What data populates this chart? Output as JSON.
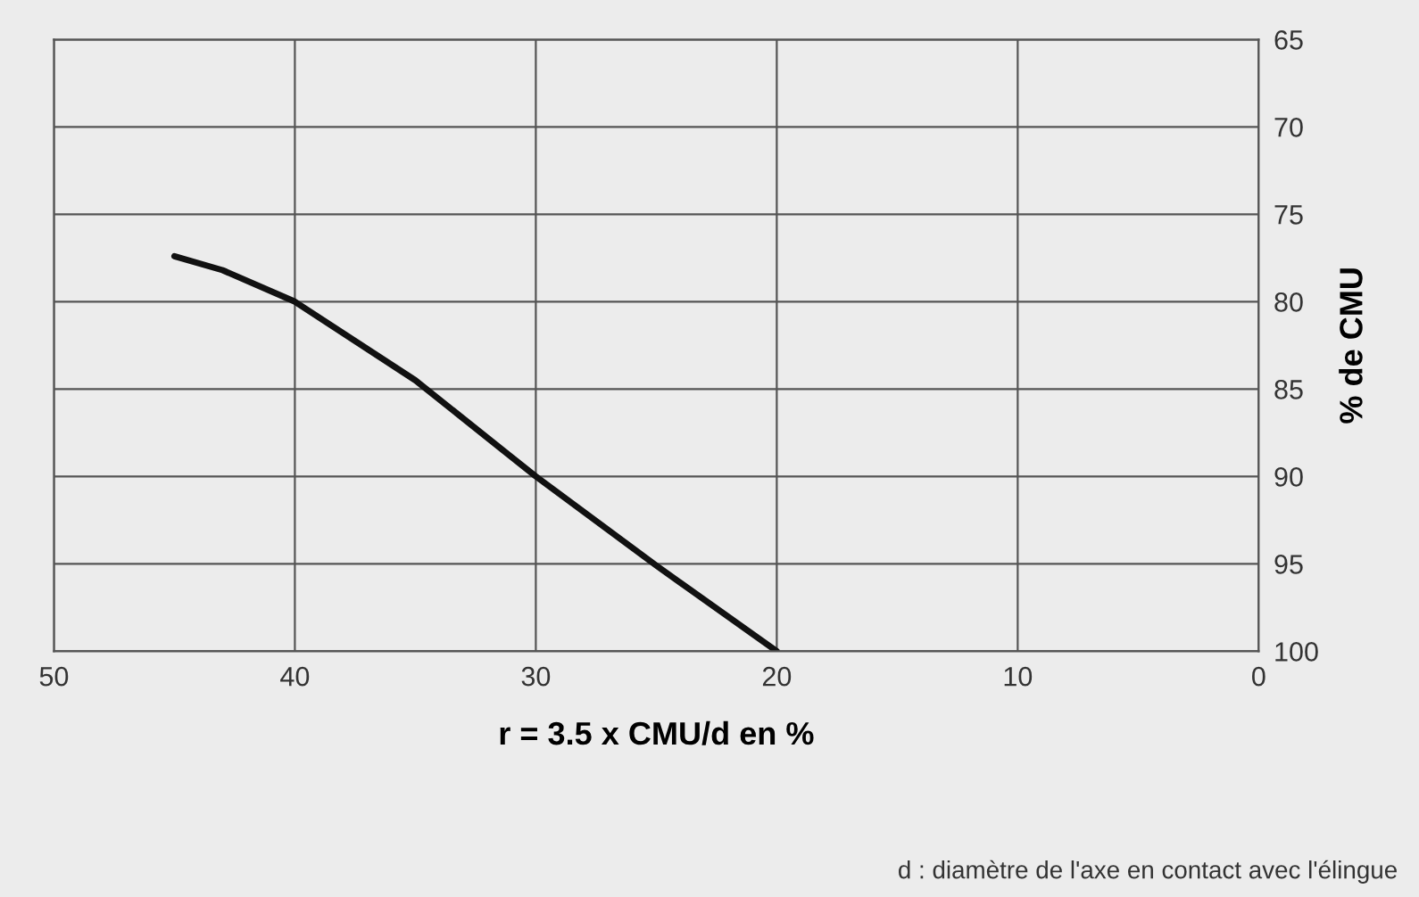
{
  "chart_data": {
    "type": "line",
    "xlabel": "r = 3.5 x CMU/d en %",
    "ylabel": "% de CMU",
    "x": [
      45,
      43,
      40,
      35,
      30,
      25,
      20
    ],
    "series": [
      {
        "color": "#111111",
        "values": [
          77.4,
          78.2,
          80,
          84.5,
          90,
          95.1,
          100
        ]
      }
    ],
    "xlim": [
      50,
      0
    ],
    "xticks": [
      50,
      40,
      30,
      20,
      10,
      0
    ],
    "ylim": [
      100,
      65
    ],
    "yticks": [
      65,
      70,
      75,
      80,
      85,
      90,
      95,
      100
    ],
    "grid": true,
    "marker": "none",
    "line_style": "solid",
    "annotations": [
      "d : diamètre de l'axe en contact avec l'élingue"
    ]
  }
}
